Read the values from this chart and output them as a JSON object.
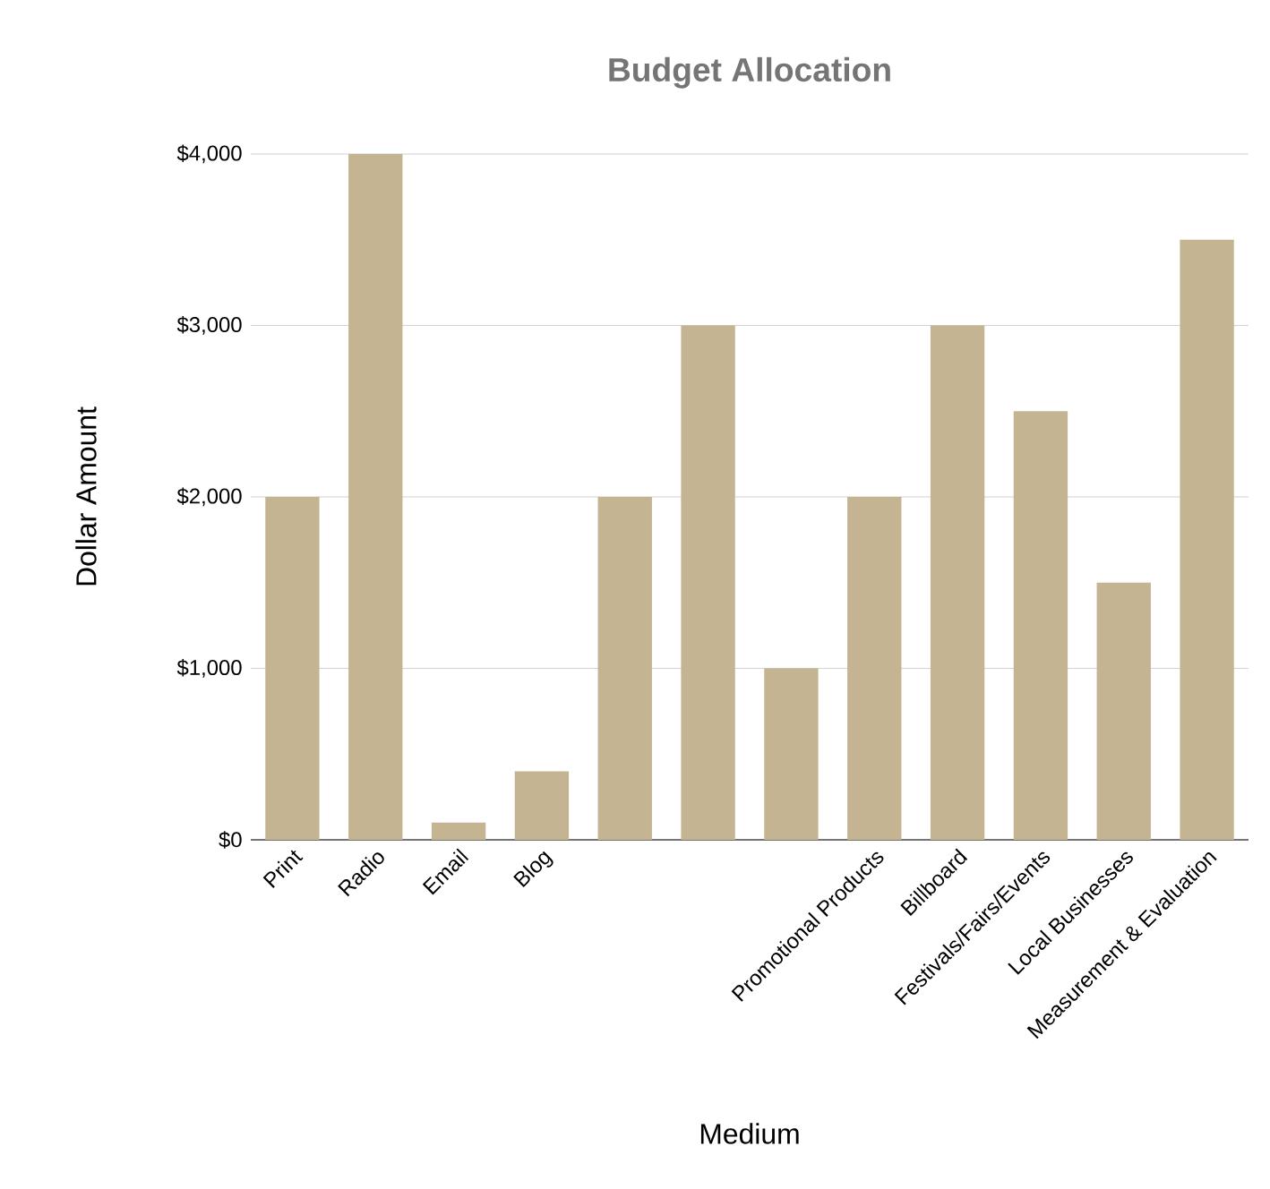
{
  "chart_data": {
    "type": "bar",
    "title": "Budget Allocation",
    "xlabel": "Medium",
    "ylabel": "Dollar Amount",
    "categories": [
      "Print",
      "Radio",
      "Email",
      "Blog",
      null,
      null,
      null,
      "Promotional Products",
      "Billboard",
      "Festivals/Fairs/Events",
      "Local Businesses",
      "Measurement & Evaluation"
    ],
    "values": [
      2000,
      4000,
      100,
      400,
      2000,
      3000,
      1000,
      2000,
      3000,
      2500,
      1500,
      3500
    ],
    "color": "#c4b492",
    "ylim": [
      0,
      4000
    ],
    "yticks": [
      {
        "value": 0,
        "label": "$0"
      },
      {
        "value": 1000,
        "label": "$1,000"
      },
      {
        "value": 2000,
        "label": "$2,000"
      },
      {
        "value": 3000,
        "label": "$3,000"
      },
      {
        "value": 4000,
        "label": "$4,000"
      }
    ],
    "grid": "y"
  }
}
